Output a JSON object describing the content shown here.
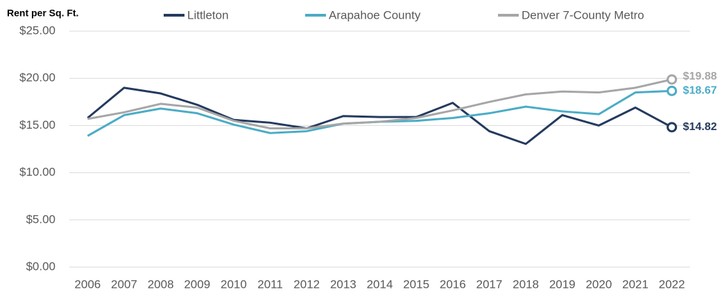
{
  "chart_data": {
    "type": "line",
    "y_axis_label": "Rent per Sq. Ft.",
    "categories": [
      "2006",
      "2007",
      "2008",
      "2009",
      "2010",
      "2011",
      "2012",
      "2013",
      "2014",
      "2015",
      "2016",
      "2017",
      "2018",
      "2019",
      "2020",
      "2021",
      "2022"
    ],
    "series": [
      {
        "name": "Littleton",
        "color": "#243a5e",
        "values": [
          15.8,
          19.0,
          18.4,
          17.2,
          15.6,
          15.3,
          14.7,
          16.0,
          15.9,
          15.9,
          17.4,
          14.4,
          13.05,
          16.1,
          15.0,
          16.9,
          14.82
        ],
        "value_labels": [
          null,
          null,
          null,
          null,
          null,
          null,
          null,
          null,
          null,
          null,
          null,
          null,
          null,
          null,
          null,
          null,
          "$14.82"
        ]
      },
      {
        "name": "Arapahoe County",
        "color": "#4bacc6",
        "values": [
          13.9,
          16.1,
          16.8,
          16.3,
          15.1,
          14.2,
          14.4,
          15.2,
          15.4,
          15.5,
          15.8,
          16.3,
          17.0,
          16.5,
          16.2,
          18.5,
          18.67
        ],
        "value_labels": [
          null,
          null,
          null,
          null,
          null,
          null,
          null,
          null,
          null,
          null,
          null,
          null,
          null,
          null,
          null,
          null,
          "$18.67"
        ]
      },
      {
        "name": "Denver 7-County Metro",
        "color": "#a6a6a6",
        "values": [
          15.7,
          16.4,
          17.3,
          16.9,
          15.5,
          14.7,
          14.7,
          15.2,
          15.4,
          15.8,
          16.6,
          17.5,
          18.3,
          18.6,
          18.5,
          19.0,
          19.88
        ],
        "value_labels": [
          null,
          null,
          null,
          null,
          null,
          null,
          null,
          null,
          null,
          null,
          null,
          null,
          null,
          null,
          null,
          null,
          "$19.88"
        ]
      }
    ],
    "ylim": [
      0,
      25
    ],
    "yticks": [
      {
        "value": 0,
        "label": "$0.00"
      },
      {
        "value": 5,
        "label": "$5.00"
      },
      {
        "value": 10,
        "label": "$10.00"
      },
      {
        "value": 15,
        "label": "$15.00"
      },
      {
        "value": 20,
        "label": "$20.00"
      },
      {
        "value": 25,
        "label": "$25.00"
      }
    ],
    "grid": true,
    "legend": "top"
  }
}
